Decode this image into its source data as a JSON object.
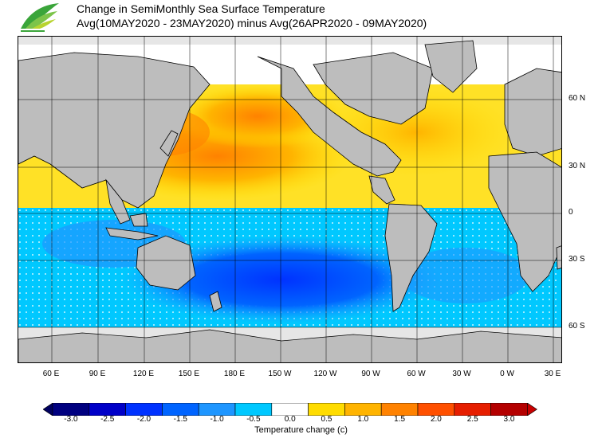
{
  "header": {
    "title": "Change in SemiMonthly Sea Surface Temperature",
    "subtitle": "Avg(10MAY2020 - 23MAY2020) minus Avg(26APR2020 - 09MAY2020)"
  },
  "map": {
    "lon_labels": [
      "60 E",
      "90 E",
      "120 E",
      "150 E",
      "180 E",
      "150 W",
      "120 W",
      "90 W",
      "60 W",
      "30 W",
      "0 W",
      "30 E"
    ],
    "lat_labels": [
      "60 N",
      "30 N",
      "0",
      "30 S",
      "60 S"
    ],
    "colors": {
      "land": "#bdbdbd",
      "ice": "#e6e6e6",
      "coast": "#000000"
    }
  },
  "colorbar": {
    "title": "Temperature change  (c)",
    "ticks": [
      "-3.0",
      "-2.5",
      "-2.0",
      "-1.5",
      "-1.0",
      "-0.5",
      "0.0",
      "0.5",
      "1.0",
      "1.5",
      "2.0",
      "2.5",
      "3.0"
    ],
    "colors": [
      "#000080",
      "#0000c8",
      "#0032ff",
      "#0064ff",
      "#1e96ff",
      "#00c8ff",
      "#ffffff",
      "#ffdc00",
      "#ffb400",
      "#ff8200",
      "#ff5000",
      "#e61e00",
      "#b40000"
    ],
    "low_arrow_color": "#000060",
    "high_arrow_color": "#c80000"
  },
  "logo": {
    "icon": "leaf-icon",
    "colors": [
      "#3aa53a",
      "#7cc44a",
      "#b8d430"
    ]
  }
}
